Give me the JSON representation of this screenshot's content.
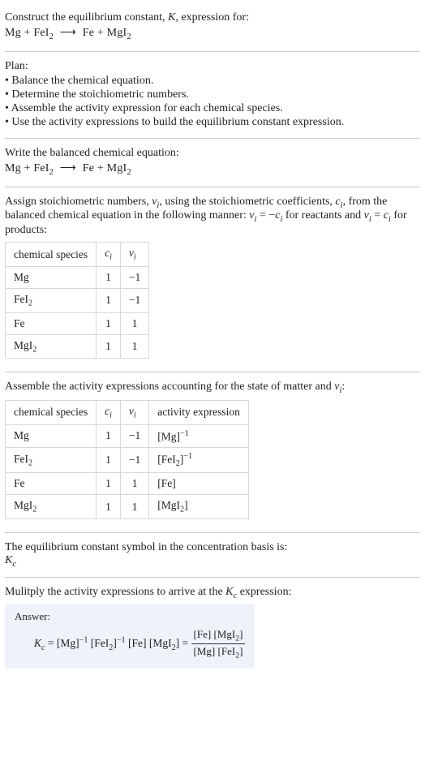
{
  "prompt": {
    "line1": "Construct the equilibrium constant, ",
    "Ksym": "K",
    "line1_after": ", expression for:",
    "equation": {
      "lhs": [
        {
          "sp": "Mg",
          "sub": ""
        },
        {
          "sp": "FeI",
          "sub": "2"
        }
      ],
      "rhs": [
        {
          "sp": "Fe",
          "sub": ""
        },
        {
          "sp": "MgI",
          "sub": "2"
        }
      ]
    }
  },
  "plan": {
    "heading": "Plan:",
    "items": [
      "• Balance the chemical equation.",
      "• Determine the stoichiometric numbers.",
      "• Assemble the activity expression for each chemical species.",
      "• Use the activity expressions to build the equilibrium constant expression."
    ]
  },
  "balanced": {
    "intro": "Write the balanced chemical equation:",
    "equation": {
      "lhs": [
        {
          "sp": "Mg",
          "sub": ""
        },
        {
          "sp": "FeI",
          "sub": "2"
        }
      ],
      "rhs": [
        {
          "sp": "Fe",
          "sub": ""
        },
        {
          "sp": "MgI",
          "sub": "2"
        }
      ]
    }
  },
  "stoich": {
    "intro_a": "Assign stoichiometric numbers, ",
    "nu": "ν",
    "isub": "i",
    "intro_b": ", using the stoichiometric coefficients, ",
    "csym": "c",
    "intro_c": ", from the balanced chemical equation in the following manner: ",
    "rel1_lhs": "ν",
    "rel1_eq": " = −",
    "rel1_rhs": "c",
    "rel_reactants": " for reactants and ",
    "rel2_lhs": "ν",
    "rel2_eq": " = ",
    "rel2_rhs": "c",
    "rel_products": " for products:",
    "table": {
      "headers": [
        "chemical species",
        "c",
        "ν"
      ],
      "header_sub": "i",
      "rows": [
        {
          "species": "Mg",
          "sub": "",
          "c": "1",
          "nu": "−1"
        },
        {
          "species": "FeI",
          "sub": "2",
          "c": "1",
          "nu": "−1"
        },
        {
          "species": "Fe",
          "sub": "",
          "c": "1",
          "nu": "1"
        },
        {
          "species": "MgI",
          "sub": "2",
          "c": "1",
          "nu": "1"
        }
      ]
    }
  },
  "activity": {
    "intro_a": "Assemble the activity expressions accounting for the state of matter and ",
    "nu": "ν",
    "isub": "i",
    "intro_b": ":",
    "table": {
      "headers": [
        "chemical species",
        "c",
        "ν",
        "activity expression"
      ],
      "header_sub": "i",
      "rows": [
        {
          "species": "Mg",
          "sub": "",
          "c": "1",
          "nu": "−1",
          "act": "[Mg]",
          "pow": "−1"
        },
        {
          "species": "FeI",
          "sub": "2",
          "c": "1",
          "nu": "−1",
          "act": "[FeI",
          "act_sub": "2",
          "act_close": "]",
          "pow": "−1"
        },
        {
          "species": "Fe",
          "sub": "",
          "c": "1",
          "nu": "1",
          "act": "[Fe]",
          "pow": ""
        },
        {
          "species": "MgI",
          "sub": "2",
          "c": "1",
          "nu": "1",
          "act": "[MgI",
          "act_sub": "2",
          "act_close": "]",
          "pow": ""
        }
      ]
    }
  },
  "kc_symbol": {
    "intro": "The equilibrium constant symbol in the concentration basis is:",
    "K": "K",
    "sub": "c"
  },
  "multiply": {
    "intro_a": "Mulitply the activity expressions to arrive at the ",
    "K": "K",
    "sub": "c",
    "intro_b": " expression:"
  },
  "answer": {
    "label": "Answer:",
    "K": "K",
    "sub": "c",
    "eq": " = ",
    "terms": {
      "t1": "[Mg]",
      "p1": "−1",
      "t2a": "[FeI",
      "t2sub": "2",
      "t2b": "]",
      "p2": "−1",
      "t3": "[Fe]",
      "t4a": "[MgI",
      "t4sub": "2",
      "t4b": "]"
    },
    "frac": {
      "num": {
        "a": "[Fe] [MgI",
        "sub": "2",
        "b": "]"
      },
      "den": {
        "a": "[Mg] [FeI",
        "sub": "2",
        "b": "]"
      }
    }
  }
}
